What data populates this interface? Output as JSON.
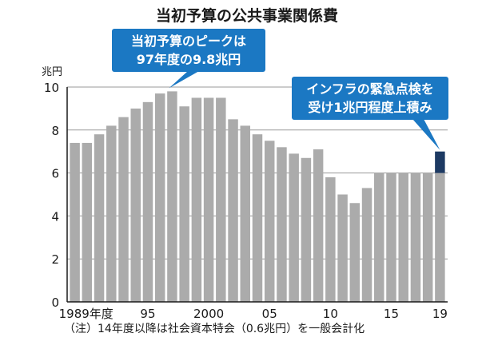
{
  "chart_data": {
    "type": "bar",
    "title": "当初予算の公共事業関係費",
    "ylabel": "兆円",
    "ylim": [
      0,
      10
    ],
    "yticks": [
      0,
      2,
      4,
      6,
      8,
      10
    ],
    "grid": true,
    "categories": [
      "1989",
      "1990",
      "1991",
      "1992",
      "1993",
      "1994",
      "1995",
      "1996",
      "1997",
      "1998",
      "1999",
      "2000",
      "2001",
      "2002",
      "2003",
      "2004",
      "2005",
      "2006",
      "2007",
      "2008",
      "2009",
      "2010",
      "2011",
      "2012",
      "2013",
      "2014",
      "2015",
      "2016",
      "2017",
      "2018",
      "2019"
    ],
    "x_tick_labels": [
      {
        "index": 0,
        "label": "1989年度"
      },
      {
        "index": 6,
        "label": "95"
      },
      {
        "index": 11,
        "label": "2000"
      },
      {
        "index": 16,
        "label": "05"
      },
      {
        "index": 21,
        "label": "10"
      },
      {
        "index": 26,
        "label": "15"
      },
      {
        "index": 30,
        "label": "19"
      }
    ],
    "values": [
      7.4,
      7.4,
      7.8,
      8.2,
      8.6,
      9.0,
      9.3,
      9.7,
      9.8,
      9.1,
      9.5,
      9.5,
      9.5,
      8.5,
      8.2,
      7.8,
      7.5,
      7.2,
      6.9,
      6.7,
      7.1,
      5.8,
      5.0,
      4.6,
      5.3,
      6.0,
      6.0,
      6.0,
      6.0,
      6.0,
      6.0
    ],
    "highlight": {
      "index": 30,
      "base": 6.0,
      "top": 7.0,
      "color": "#1d3a63"
    },
    "bar_color": "#ababab",
    "callouts": [
      {
        "lines": [
          "当初予算のピークは",
          "97年度の9.8兆円"
        ],
        "color": "#1b78c3"
      },
      {
        "lines": [
          "インフラの緊急点検を",
          "受け1兆円程度上積み"
        ],
        "color": "#1b78c3"
      }
    ],
    "note": "（注）14年度以降は社会資本特会（0.6兆円）を一般会計化"
  }
}
